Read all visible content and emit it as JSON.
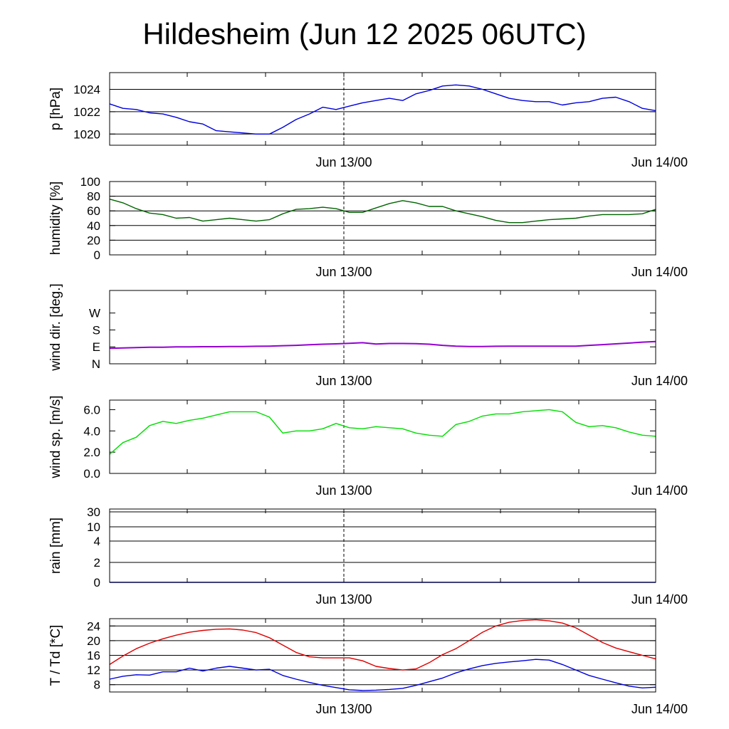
{
  "title": "Hildesheim (Jun 12 2025 06UTC)",
  "x_tick_labels": [
    "Jun 13/00",
    "Jun 14/00"
  ],
  "chart_data": [
    {
      "type": "line",
      "ylabel": "p [hPa]",
      "ylim": [
        1019,
        1025.5
      ],
      "yticks": [
        1020,
        1022,
        1024
      ],
      "ytick_labels": [
        "1020",
        "1022",
        "1024"
      ],
      "gridlines": [
        1020,
        1022,
        1024
      ],
      "x": [
        0,
        1,
        2,
        3,
        4,
        5,
        6,
        7,
        8,
        9,
        10,
        11,
        12,
        13,
        14,
        15,
        16,
        17,
        18,
        19,
        20,
        21,
        22,
        23,
        24,
        25,
        26,
        27,
        28,
        29,
        30,
        31,
        32,
        33,
        34,
        35,
        36,
        37,
        38,
        39,
        40,
        41
      ],
      "series": [
        {
          "color": "#0000dd",
          "values": [
            1022.7,
            1022.3,
            1022.2,
            1021.9,
            1021.8,
            1021.5,
            1021.1,
            1020.9,
            1020.3,
            1020.2,
            1020.1,
            1020.0,
            1020.0,
            1020.6,
            1021.3,
            1021.8,
            1022.4,
            1022.2,
            1022.5,
            1022.8,
            1023.0,
            1023.2,
            1023.0,
            1023.6,
            1023.9,
            1024.3,
            1024.4,
            1024.3,
            1024.0,
            1023.6,
            1023.2,
            1023.0,
            1022.9,
            1022.9,
            1022.6,
            1022.8,
            1022.9,
            1023.2,
            1023.3,
            1022.9,
            1022.3,
            1022.1
          ]
        }
      ]
    },
    {
      "type": "line",
      "ylabel": "humidity [%]",
      "ylim": [
        0,
        100
      ],
      "yticks": [
        0,
        20,
        40,
        60,
        80,
        100
      ],
      "ytick_labels": [
        "0",
        "20",
        "40",
        "60",
        "80",
        "100"
      ],
      "gridlines": [
        20,
        40,
        60,
        80
      ],
      "x": [
        0,
        1,
        2,
        3,
        4,
        5,
        6,
        7,
        8,
        9,
        10,
        11,
        12,
        13,
        14,
        15,
        16,
        17,
        18,
        19,
        20,
        21,
        22,
        23,
        24,
        25,
        26,
        27,
        28,
        29,
        30,
        31,
        32,
        33,
        34,
        35,
        36,
        37,
        38,
        39,
        40,
        41
      ],
      "series": [
        {
          "color": "#006400",
          "values": [
            76,
            71,
            63,
            57,
            55,
            50,
            51,
            46,
            48,
            50,
            48,
            46,
            48,
            56,
            62,
            63,
            65,
            63,
            58,
            58,
            64,
            70,
            74,
            71,
            66,
            66,
            60,
            56,
            52,
            47,
            44,
            44,
            46,
            48,
            49,
            50,
            53,
            55,
            55,
            55,
            56,
            62
          ]
        }
      ]
    },
    {
      "type": "line",
      "ylabel": "wind dir. [deg.]",
      "ylim": [
        0,
        390
      ],
      "yticks": [
        0,
        90,
        180,
        270
      ],
      "ytick_labels": [
        "N",
        "E",
        "S",
        "W"
      ],
      "gridlines": [],
      "x": [
        0,
        1,
        2,
        3,
        4,
        5,
        6,
        7,
        8,
        9,
        10,
        11,
        12,
        13,
        14,
        15,
        16,
        17,
        18,
        19,
        20,
        21,
        22,
        23,
        24,
        25,
        26,
        27,
        28,
        29,
        30,
        31,
        32,
        33,
        34,
        35,
        36,
        37,
        38,
        39,
        40,
        41
      ],
      "series": [
        {
          "color": "#9400d3",
          "values": [
            82,
            84,
            86,
            88,
            88,
            90,
            90,
            91,
            91,
            92,
            92,
            93,
            94,
            96,
            98,
            101,
            104,
            106,
            109,
            112,
            105,
            108,
            108,
            107,
            104,
            98,
            94,
            92,
            92,
            93,
            94,
            94,
            94,
            94,
            94,
            94,
            98,
            102,
            106,
            110,
            115,
            118
          ]
        }
      ]
    },
    {
      "type": "line",
      "ylabel": "wind sp. [m/s]",
      "ylim": [
        0,
        6.9
      ],
      "yticks": [
        0,
        2,
        4,
        6
      ],
      "ytick_labels": [
        "0.0",
        "2.0",
        "4.0",
        "6.0"
      ],
      "gridlines": [],
      "x": [
        0,
        1,
        2,
        3,
        4,
        5,
        6,
        7,
        8,
        9,
        10,
        11,
        12,
        13,
        14,
        15,
        16,
        17,
        18,
        19,
        20,
        21,
        22,
        23,
        24,
        25,
        26,
        27,
        28,
        29,
        30,
        31,
        32,
        33,
        34,
        35,
        36,
        37,
        38,
        39,
        40,
        41
      ],
      "series": [
        {
          "color": "#00dd00",
          "values": [
            1.8,
            2.9,
            3.4,
            4.5,
            4.9,
            4.7,
            5.0,
            5.2,
            5.5,
            5.8,
            5.8,
            5.8,
            5.3,
            3.8,
            4.0,
            4.0,
            4.2,
            4.7,
            4.3,
            4.2,
            4.4,
            4.3,
            4.2,
            3.8,
            3.6,
            3.5,
            4.6,
            4.9,
            5.4,
            5.6,
            5.6,
            5.8,
            5.9,
            6.0,
            5.8,
            4.8,
            4.4,
            4.5,
            4.3,
            3.9,
            3.6,
            3.5
          ]
        }
      ]
    },
    {
      "type": "line",
      "ylabel": "rain [mm]",
      "yticks": [
        0,
        2,
        4,
        10,
        30
      ],
      "ytick_labels": [
        "0",
        "2",
        "4",
        "10",
        "30"
      ],
      "gridlines": [
        2,
        4,
        10,
        30
      ],
      "x": [
        0,
        41
      ],
      "series": [
        {
          "color": "#0000dd",
          "values": [
            0,
            0
          ]
        }
      ]
    },
    {
      "type": "line",
      "ylabel": "T / Td [*C]",
      "ylim": [
        6,
        26
      ],
      "yticks": [
        8,
        12,
        16,
        20,
        24
      ],
      "ytick_labels": [
        "8",
        "12",
        "16",
        "20",
        "24"
      ],
      "gridlines": [
        8,
        12,
        16,
        20,
        24
      ],
      "x": [
        0,
        1,
        2,
        3,
        4,
        5,
        6,
        7,
        8,
        9,
        10,
        11,
        12,
        13,
        14,
        15,
        16,
        17,
        18,
        19,
        20,
        21,
        22,
        23,
        24,
        25,
        26,
        27,
        28,
        29,
        30,
        31,
        32,
        33,
        34,
        35,
        36,
        37,
        38,
        39,
        40,
        41
      ],
      "series": [
        {
          "color": "#dd0000",
          "values": [
            13.5,
            15.8,
            17.8,
            19.3,
            20.5,
            21.5,
            22.3,
            22.8,
            23.1,
            23.2,
            22.9,
            22.2,
            20.8,
            18.8,
            16.8,
            15.6,
            15.3,
            15.3,
            15.3,
            14.5,
            13.0,
            12.4,
            12.0,
            12.3,
            14.0,
            16.2,
            17.8,
            20.0,
            22.3,
            24.0,
            25.0,
            25.5,
            25.7,
            25.4,
            24.8,
            23.5,
            21.5,
            19.5,
            18.0,
            17.0,
            16.0,
            15.0
          ]
        },
        {
          "color": "#0000dd",
          "values": [
            9.5,
            10.3,
            10.7,
            10.6,
            11.5,
            11.5,
            12.5,
            11.7,
            12.5,
            13.0,
            12.5,
            12.0,
            12.2,
            10.5,
            9.5,
            8.6,
            7.8,
            7.2,
            6.6,
            6.4,
            6.5,
            6.7,
            7.0,
            7.8,
            8.8,
            9.8,
            11.2,
            12.3,
            13.2,
            13.8,
            14.2,
            14.5,
            14.9,
            14.7,
            13.5,
            12.0,
            10.5,
            9.5,
            8.5,
            7.6,
            7.1,
            7.3
          ]
        }
      ]
    }
  ]
}
